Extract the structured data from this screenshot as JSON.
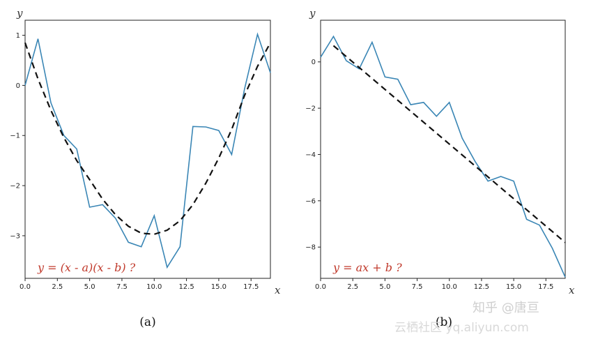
{
  "chart_data": [
    {
      "type": "line",
      "caption": "(a)",
      "xlabel": "x",
      "ylabel": "y",
      "annotation": "y = (x - a)(x - b) ?",
      "xlim": [
        0,
        19
      ],
      "ylim": [
        -3.85,
        1.3
      ],
      "xticks": [
        0.0,
        2.5,
        5.0,
        7.5,
        10.0,
        12.5,
        15.0,
        17.5
      ],
      "xtick_labels": [
        "0.0",
        "2.5",
        "5.0",
        "7.5",
        "10.0",
        "12.5",
        "15.0",
        "17.5"
      ],
      "yticks": [
        1,
        0,
        -1,
        -2,
        -3
      ],
      "ytick_labels": [
        "1",
        "0",
        "−1",
        "−2",
        "−3"
      ],
      "series": [
        {
          "style": "solid",
          "color": "#3a86b5",
          "x": [
            0,
            1,
            2,
            3,
            4,
            5,
            6,
            7,
            8,
            9,
            10,
            11,
            12,
            13,
            14,
            15,
            16,
            17,
            18,
            19
          ],
          "y": [
            0.0,
            0.93,
            -0.35,
            -1.0,
            -1.27,
            -2.43,
            -2.38,
            -2.65,
            -3.13,
            -3.22,
            -2.6,
            -3.63,
            -3.22,
            -0.82,
            -0.83,
            -0.9,
            -1.38,
            -0.07,
            1.02,
            0.25
          ]
        },
        {
          "style": "dashed",
          "color": "#111111",
          "x": [
            0,
            1,
            2,
            3,
            4,
            5,
            6,
            7,
            8,
            9,
            10,
            11,
            12,
            13,
            14,
            15,
            16,
            17,
            18,
            19
          ],
          "y": [
            0.85,
            0.13,
            -0.5,
            -1.04,
            -1.5,
            -1.88,
            -2.27,
            -2.58,
            -2.81,
            -2.95,
            -2.97,
            -2.89,
            -2.7,
            -2.38,
            -1.95,
            -1.45,
            -0.88,
            -0.2,
            0.38,
            0.85
          ]
        }
      ]
    },
    {
      "type": "line",
      "caption": "(b)",
      "xlabel": "x",
      "ylabel": "y",
      "annotation": "y = ax + b ?",
      "xlim": [
        0,
        19
      ],
      "ylim": [
        -9.35,
        1.8
      ],
      "xticks": [
        0.0,
        2.5,
        5.0,
        7.5,
        10.0,
        12.5,
        15.0,
        17.5
      ],
      "xtick_labels": [
        "0.0",
        "2.5",
        "5.0",
        "7.5",
        "10.0",
        "12.5",
        "15.0",
        "17.5"
      ],
      "yticks": [
        0,
        -2,
        -4,
        -6,
        -8
      ],
      "ytick_labels": [
        "0",
        "−2",
        "−4",
        "−6",
        "−8"
      ],
      "series": [
        {
          "style": "solid",
          "color": "#3a86b5",
          "x": [
            0,
            1,
            2,
            3,
            4,
            5,
            6,
            7,
            8,
            9,
            10,
            11,
            12,
            13,
            14,
            15,
            16,
            17,
            18,
            19
          ],
          "y": [
            0.2,
            1.1,
            0.05,
            -0.3,
            0.85,
            -0.65,
            -0.75,
            -1.85,
            -1.75,
            -2.35,
            -1.75,
            -3.3,
            -4.3,
            -5.15,
            -4.95,
            -5.15,
            -6.8,
            -7.05,
            -8.05,
            -9.3
          ]
        },
        {
          "style": "dashed",
          "color": "#111111",
          "x": [
            1,
            19
          ],
          "y": [
            0.7,
            -7.8
          ]
        }
      ]
    }
  ],
  "watermark": {
    "zhihu": "知乎 @唐亘",
    "site": "云栖社区 yq.aliyun.com"
  }
}
